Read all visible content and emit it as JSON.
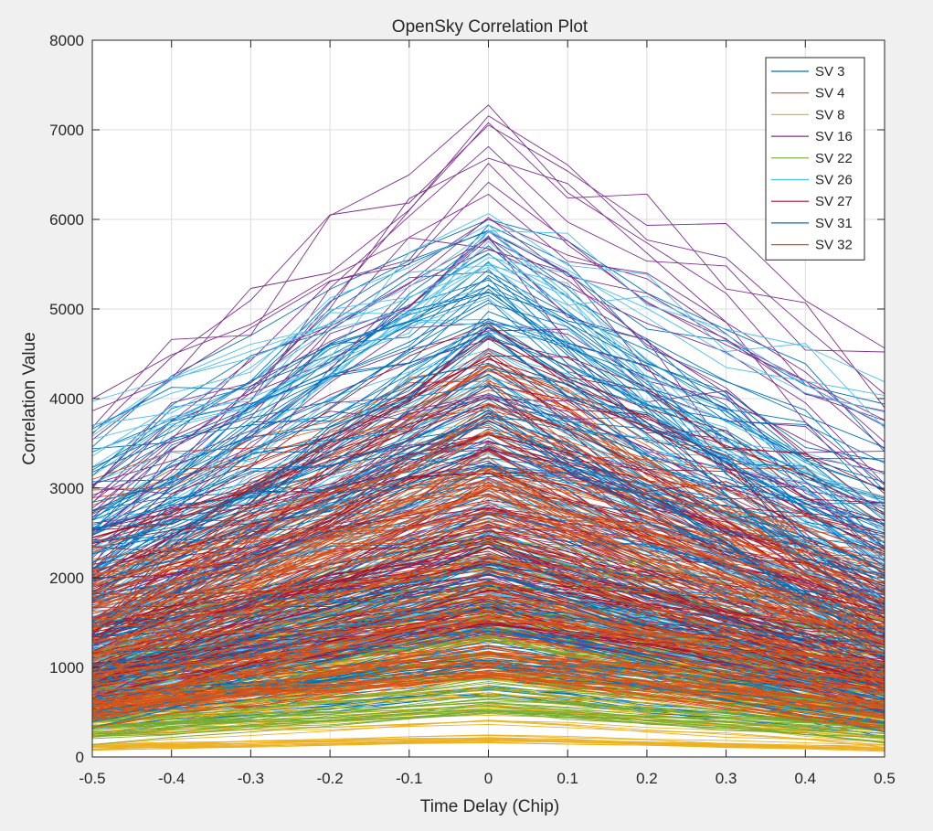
{
  "chart_data": {
    "type": "line",
    "title": "OpenSky Correlation Plot",
    "xlabel": "Time Delay (Chip)",
    "ylabel": "Correlation Value",
    "xlim": [
      -0.5,
      0.5
    ],
    "ylim": [
      0,
      8000
    ],
    "x": [
      -0.5,
      -0.4,
      -0.3,
      -0.2,
      -0.1,
      0,
      0.1,
      0.2,
      0.3,
      0.4,
      0.5
    ],
    "x_tick_labels": [
      "-0.5",
      "-0.4",
      "-0.3",
      "-0.2",
      "-0.1",
      "0",
      "0.1",
      "0.2",
      "0.3",
      "0.4",
      "0.5"
    ],
    "y_tick_labels": [
      "0",
      "1000",
      "2000",
      "3000",
      "4000",
      "5000",
      "6000",
      "7000",
      "8000"
    ],
    "grid": true,
    "legend_position": "top-right",
    "series": [
      {
        "name": "SV 3",
        "color": "#0072BD",
        "peak_range": [
          700,
          6250
        ],
        "curve_count": 90
      },
      {
        "name": "SV 4",
        "color": "#D95319",
        "peak_range": [
          900,
          4500
        ],
        "curve_count": 110
      },
      {
        "name": "SV 8",
        "color": "#EDB120",
        "peak_range": [
          150,
          1900
        ],
        "curve_count": 60
      },
      {
        "name": "SV 16",
        "color": "#7E2F8E",
        "peak_range": [
          1400,
          7280
        ],
        "curve_count": 70
      },
      {
        "name": "SV 22",
        "color": "#77AC30",
        "peak_range": [
          500,
          2600
        ],
        "curve_count": 70
      },
      {
        "name": "SV 26",
        "color": "#4DBEEE",
        "peak_range": [
          1500,
          6200
        ],
        "curve_count": 60
      },
      {
        "name": "SV 27",
        "color": "#A2142F",
        "peak_range": [
          1500,
          4800
        ],
        "curve_count": 90
      },
      {
        "name": "SV 31",
        "color": "#0072BD",
        "peak_range": [
          1000,
          5300
        ],
        "curve_count": 80
      },
      {
        "name": "SV 32",
        "color": "#D95319",
        "peak_range": [
          900,
          3800
        ],
        "curve_count": 90
      }
    ]
  }
}
